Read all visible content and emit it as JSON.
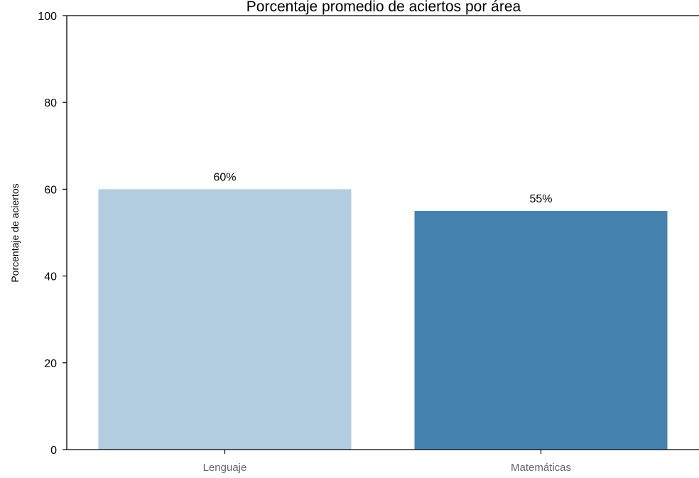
{
  "chart_data": {
    "type": "bar",
    "title": "Porcentaje promedio de aciertos por área",
    "xlabel": "",
    "ylabel": "Porcentaje de aciertos",
    "categories": [
      "Lenguaje",
      "Matemáticas"
    ],
    "values": [
      60,
      55
    ],
    "data_labels": [
      "60%",
      "55%"
    ],
    "bar_colors": [
      "#b3cde0",
      "#4682b0"
    ],
    "ylim": [
      0,
      100
    ],
    "yticks": [
      0,
      20,
      40,
      60,
      80,
      100
    ],
    "grid": false,
    "legend": "none"
  }
}
